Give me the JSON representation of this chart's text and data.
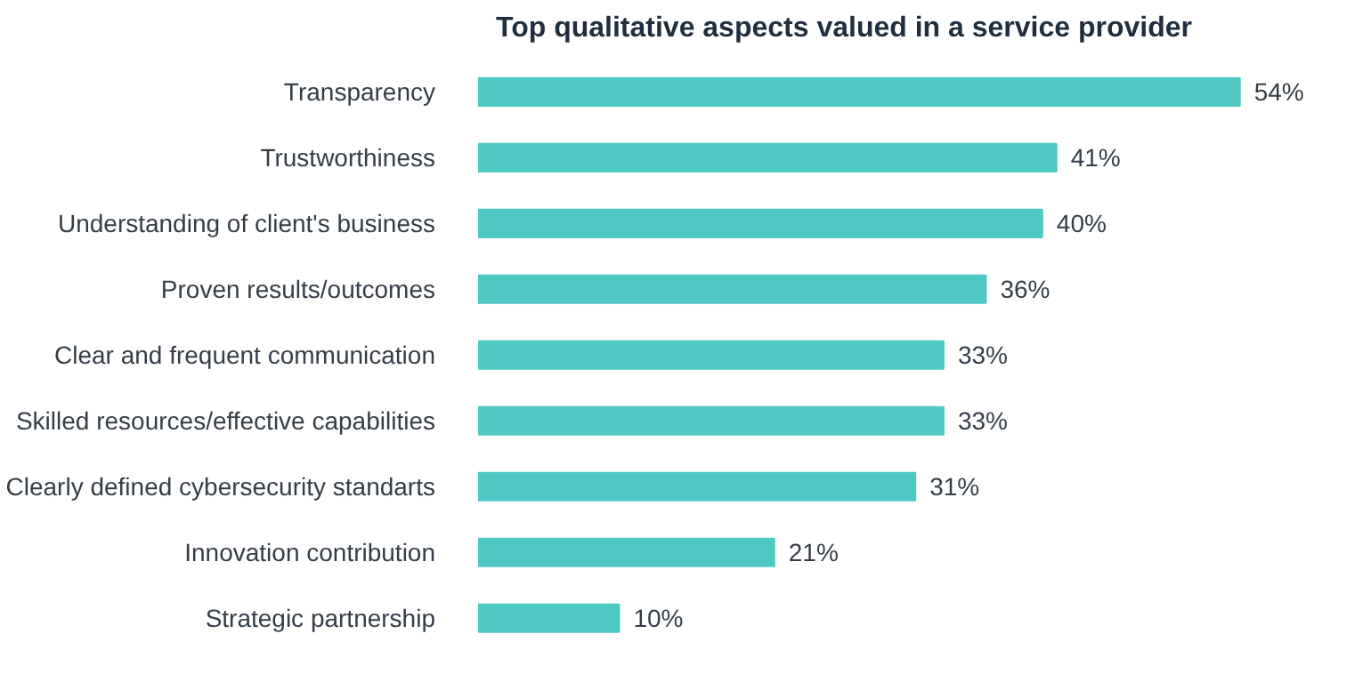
{
  "chart_data": {
    "type": "bar",
    "orientation": "horizontal",
    "title": "Top qualitative aspects valued in a service provider",
    "categories": [
      "Transparency",
      "Trustworthiness",
      "Understanding of client's business",
      "Proven results/outcomes",
      "Clear and frequent communication",
      "Skilled resources/effective capabilities",
      "Clearly defined cybersecurity standarts",
      "Innovation contribution",
      "Strategic partnership"
    ],
    "values": [
      54,
      41,
      40,
      36,
      33,
      33,
      31,
      21,
      10
    ],
    "value_labels": [
      "54%",
      "41%",
      "40%",
      "36%",
      "33%",
      "33%",
      "31%",
      "21%",
      "10%"
    ],
    "color": "#4fc8c4",
    "grid": false
  }
}
